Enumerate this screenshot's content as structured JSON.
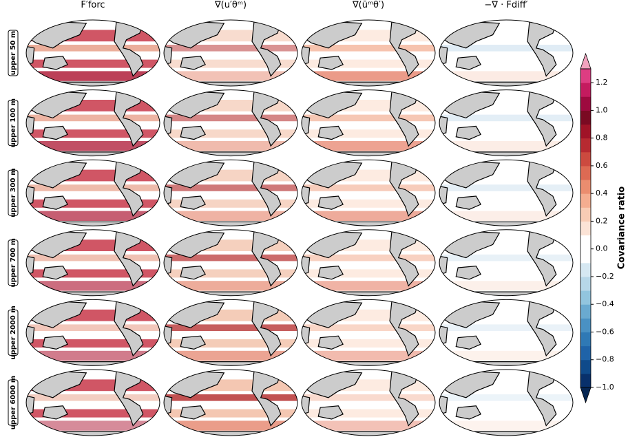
{
  "column_titles": [
    "F′forc",
    "∇(u′θ̄ᵐ)",
    "∇(ūᵐθ′)",
    "−∇ · Fdiff′"
  ],
  "row_labels": [
    "upper 50 m",
    "upper 100 m",
    "upper 300 m",
    "upper 700 m",
    "upper 2000 m",
    "upper 6000 m"
  ],
  "chart_data": {
    "type": "colorbar",
    "label": "Covariance ratio",
    "lim": [
      -1.0,
      1.3
    ],
    "ticks": [
      {
        "value": -1.0,
        "label": "−1.0"
      },
      {
        "value": -0.8,
        "label": "−0.8"
      },
      {
        "value": -0.6,
        "label": "−0.6"
      },
      {
        "value": -0.4,
        "label": "−0.4"
      },
      {
        "value": -0.2,
        "label": "−0.2"
      },
      {
        "value": 0.0,
        "label": "0.0"
      },
      {
        "value": 0.2,
        "label": "0.2"
      },
      {
        "value": 0.4,
        "label": "0.4"
      },
      {
        "value": 0.6,
        "label": "0.6"
      },
      {
        "value": 0.8,
        "label": "0.8"
      },
      {
        "value": 1.0,
        "label": "1.0"
      },
      {
        "value": 1.2,
        "label": "1.2"
      }
    ],
    "colors": [
      "#08306b",
      "#0f4a8a",
      "#1f63a8",
      "#2f79b5",
      "#4a91c3",
      "#6aaad0",
      "#92c5de",
      "#b7d7e8",
      "#d6e8f2",
      "#ffffff",
      "#ffffff",
      "#fbe3d6",
      "#f8ccb5",
      "#f4ad90",
      "#ea8d6f",
      "#dd6a53",
      "#cc4a3f",
      "#b72a31",
      "#a01327",
      "#7a0a22",
      "#9e0a3f",
      "#c41b5f",
      "#dd3d82"
    ],
    "extend_colors": [
      "#062653",
      "#f3a3bf"
    ]
  }
}
